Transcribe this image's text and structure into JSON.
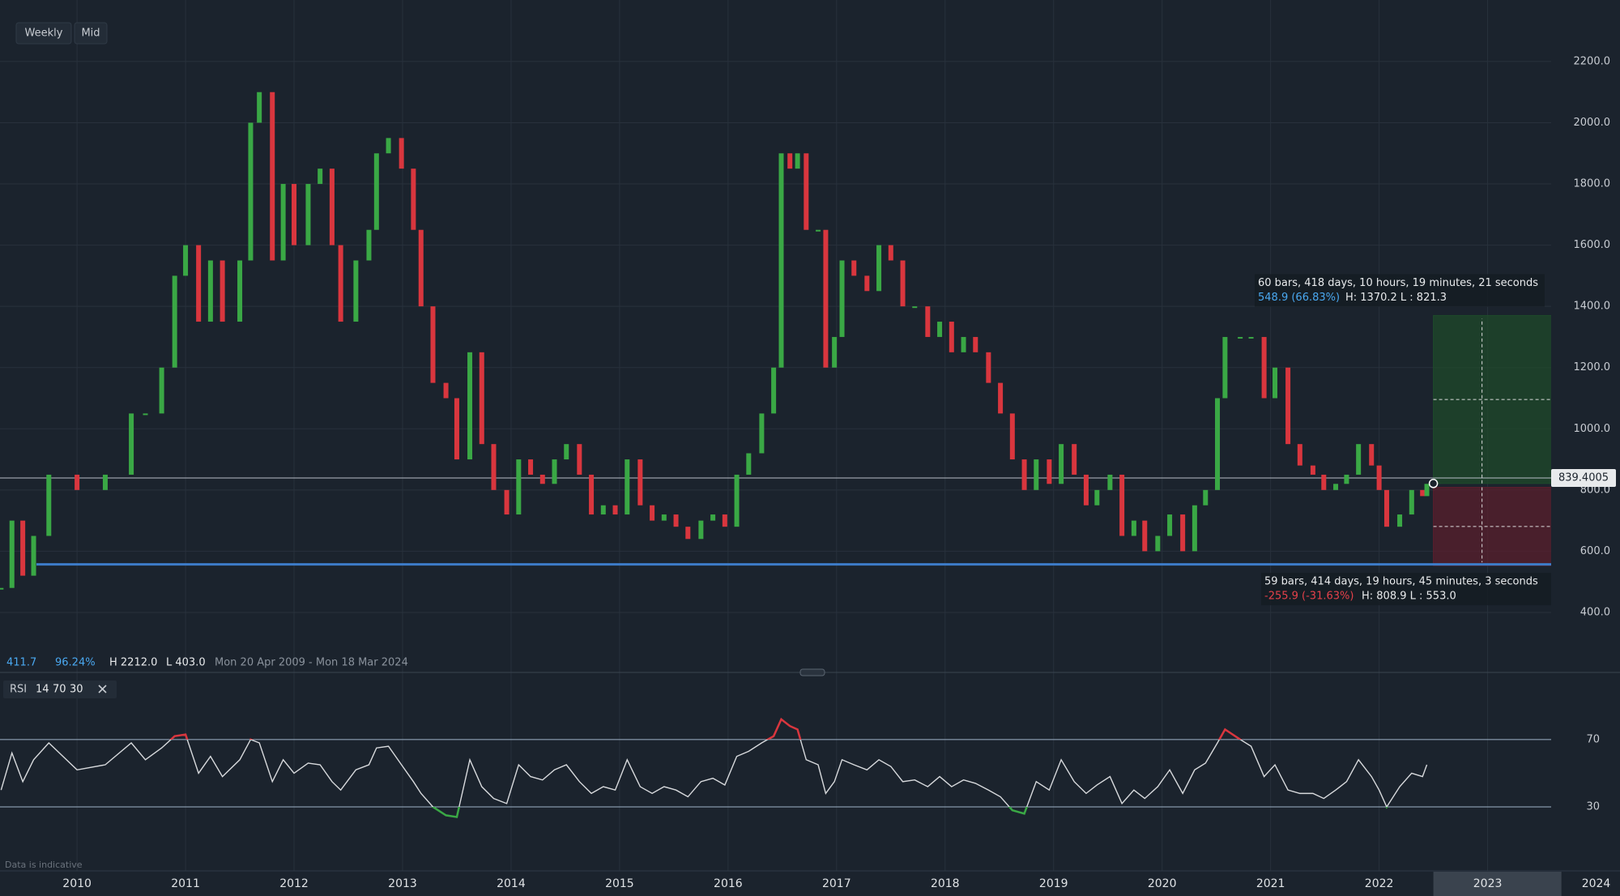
{
  "toolbar": {
    "interval": "Weekly",
    "price_type": "Mid"
  },
  "chart_data": [
    {
      "type": "candlestick",
      "x": [
        2009.3,
        2009.4,
        2009.5,
        2009.6,
        2009.74,
        2010.0,
        2010.26,
        2010.5,
        2010.63,
        2010.78,
        2010.9,
        2011.0,
        2011.12,
        2011.23,
        2011.34,
        2011.5,
        2011.6,
        2011.68,
        2011.8,
        2011.9,
        2012.0,
        2012.13,
        2012.24,
        2012.35,
        2012.43,
        2012.57,
        2012.69,
        2012.76,
        2012.87,
        2012.99,
        2013.1,
        2013.17,
        2013.28,
        2013.4,
        2013.5,
        2013.62,
        2013.73,
        2013.84,
        2013.96,
        2014.07,
        2014.18,
        2014.29,
        2014.4,
        2014.51,
        2014.63,
        2014.74,
        2014.85,
        2014.96,
        2015.07,
        2015.19,
        2015.3,
        2015.41,
        2015.52,
        2015.63,
        2015.75,
        2015.86,
        2015.97,
        2016.08,
        2016.19,
        2016.31,
        2016.42,
        2016.49,
        2016.57,
        2016.64,
        2016.72,
        2016.83,
        2016.9,
        2016.98,
        2017.05,
        2017.16,
        2017.28,
        2017.39,
        2017.5,
        2017.61,
        2017.72,
        2017.84,
        2017.95,
        2018.06,
        2018.17,
        2018.28,
        2018.4,
        2018.51,
        2018.62,
        2018.73,
        2018.84,
        2018.96,
        2019.07,
        2019.19,
        2019.3,
        2019.4,
        2019.52,
        2019.63,
        2019.74,
        2019.84,
        2019.96,
        2020.07,
        2020.19,
        2020.3,
        2020.4,
        2020.51,
        2020.58,
        2020.72,
        2020.82,
        2020.94,
        2021.04,
        2021.16,
        2021.27,
        2021.39,
        2021.49,
        2021.6,
        2021.7,
        2021.81,
        2021.93,
        2022.0,
        2022.07,
        2022.19,
        2022.3,
        2022.4,
        2022.44
      ],
      "values": [
        480,
        700,
        520,
        650,
        850,
        800,
        850,
        1050,
        1050,
        1200,
        1500,
        1600,
        1350,
        1550,
        1350,
        1550,
        2000,
        2100,
        1550,
        1800,
        1600,
        1800,
        1850,
        1600,
        1350,
        1550,
        1650,
        1900,
        1950,
        1850,
        1650,
        1400,
        1150,
        1100,
        900,
        1250,
        950,
        800,
        720,
        900,
        850,
        820,
        900,
        950,
        850,
        720,
        750,
        720,
        900,
        750,
        700,
        720,
        680,
        640,
        700,
        720,
        680,
        850,
        920,
        1050,
        1200,
        1900,
        1850,
        1900,
        1650,
        1650,
        1200,
        1300,
        1550,
        1500,
        1450,
        1600,
        1550,
        1400,
        1400,
        1300,
        1350,
        1250,
        1300,
        1250,
        1150,
        1050,
        900,
        800,
        900,
        820,
        950,
        850,
        750,
        800,
        850,
        650,
        700,
        600,
        650,
        720,
        600,
        750,
        800,
        1100,
        1300,
        1300,
        1300,
        1100,
        1200,
        950,
        880,
        850,
        800,
        820,
        850,
        950,
        880,
        800,
        680,
        720,
        800,
        780,
        820
      ],
      "up_color": "#3aa845",
      "down_color": "#d9363e",
      "xlim": [
        2009.29,
        2024.22
      ],
      "xticks": [
        2010,
        2011,
        2012,
        2013,
        2014,
        2015,
        2016,
        2017,
        2018,
        2019,
        2020,
        2021,
        2022,
        2023,
        2024
      ],
      "ylim": [
        204,
        2401
      ],
      "yticks": [
        {
          "value": 400,
          "label": "400.0"
        },
        {
          "value": 600,
          "label": "600.0"
        },
        {
          "value": 800,
          "label": "800.0"
        },
        {
          "value": 1000,
          "label": "1000.0"
        },
        {
          "value": 1200,
          "label": "1200.0"
        },
        {
          "value": 1400,
          "label": "1400.0"
        },
        {
          "value": 1600,
          "label": "1600.0"
        },
        {
          "value": 1800,
          "label": "1800.0"
        },
        {
          "value": 2000,
          "label": "2000.0"
        },
        {
          "value": 2200,
          "label": "2200.0"
        }
      ],
      "grid": true,
      "current_price": 839.4005,
      "support_line": {
        "value": 557,
        "color": "#3d7cc9"
      },
      "stats": {
        "last": 411.7,
        "change": "96.24%",
        "high": "H 2212.0",
        "low": "L 403.0",
        "range": "Mon 20 Apr 2009 - Mon 18 Mar 2024"
      },
      "measurements": [
        {
          "text": "60 bars, 418 days, 10 hours, 19 minutes, 21 seconds",
          "change": "548.9 (66.83%)",
          "range": "H: 1370.2 L : 821.3",
          "high": 1370.2,
          "low": 821.3,
          "x_start": 2022.5,
          "x_end": 2023.68,
          "color": "#4aa8f0",
          "fill": "#1f4a2a"
        },
        {
          "text": "59 bars, 414 days, 19 hours, 45 minutes, 3 seconds",
          "change": "-255.9 (-31.63%)",
          "range": "H: 808.9 L : 553.0",
          "high": 808.9,
          "low": 553.0,
          "x_start": 2022.5,
          "x_end": 2023.68,
          "color": "#e5414a",
          "fill": "#5a1f2c"
        }
      ]
    },
    {
      "type": "line",
      "name": "RSI",
      "period": 14,
      "upper": 70,
      "lower": 30,
      "values": [
        40,
        62,
        45,
        58,
        68,
        52,
        55,
        68,
        58,
        65,
        72,
        73,
        50,
        60,
        48,
        58,
        70,
        68,
        45,
        58,
        50,
        56,
        55,
        45,
        40,
        52,
        55,
        65,
        66,
        55,
        45,
        38,
        30,
        25,
        24,
        58,
        42,
        35,
        32,
        55,
        48,
        46,
        52,
        55,
        45,
        38,
        42,
        40,
        58,
        42,
        38,
        42,
        40,
        36,
        45,
        47,
        43,
        60,
        63,
        68,
        72,
        82,
        78,
        76,
        58,
        55,
        38,
        45,
        58,
        55,
        52,
        58,
        54,
        45,
        46,
        42,
        48,
        42,
        46,
        44,
        40,
        36,
        28,
        26,
        45,
        40,
        58,
        45,
        38,
        43,
        48,
        32,
        40,
        35,
        42,
        52,
        38,
        52,
        56,
        68,
        76,
        70,
        66,
        48,
        55,
        40,
        38,
        38,
        35,
        40,
        45,
        58,
        48,
        40,
        30,
        42,
        50,
        48,
        55
      ],
      "color": "#d8dadd",
      "over_color": "#d9363e",
      "under_color": "#3aa845",
      "ylim": [
        -8,
        106
      ],
      "yticks": [
        30,
        70
      ]
    }
  ],
  "footnote": "Data is indicative"
}
